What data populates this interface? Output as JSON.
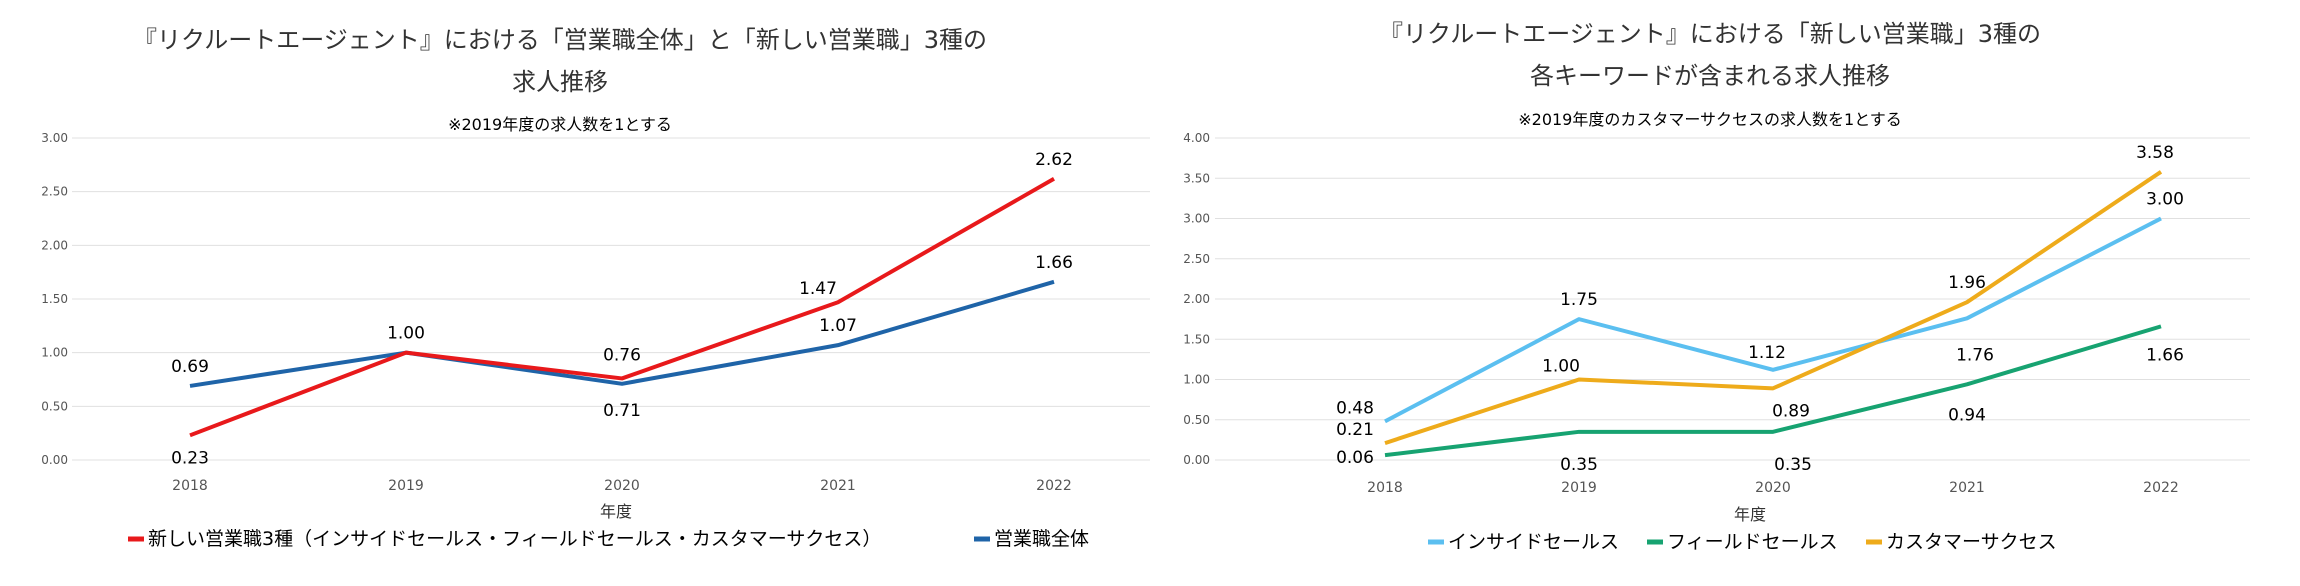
{
  "chart_data": [
    {
      "type": "line",
      "title_lines": [
        "『リクルートエージェント』における「営業職全体」と「新しい営業職」3種の",
        "求人推移"
      ],
      "subtitle": "※2019年度の求人数を1とする",
      "xlabel": "年度",
      "categories": [
        "2018",
        "2019",
        "2020",
        "2021",
        "2022"
      ],
      "ylim": [
        0,
        3
      ],
      "yticks": [
        "0.00",
        "0.50",
        "1.00",
        "1.50",
        "2.00",
        "2.50",
        "3.00"
      ],
      "grid": true,
      "legend_position": "bottom",
      "series": [
        {
          "name": "新しい営業職3種（インサイドセールス・フィールドセールス・カスタマーサクセス）",
          "color": "#e8191b",
          "values": [
            0.23,
            1.0,
            0.76,
            1.47,
            2.62
          ],
          "labels": [
            "0.23",
            "1.00",
            "0.76",
            "1.47",
            "2.62"
          ]
        },
        {
          "name": "営業職全体",
          "color": "#1f64a8",
          "values": [
            0.69,
            1.0,
            0.71,
            1.07,
            1.66
          ],
          "labels": [
            "0.69",
            "",
            "0.71",
            "1.07",
            "1.66"
          ]
        }
      ]
    },
    {
      "type": "line",
      "title_lines": [
        "『リクルートエージェント』における「新しい営業職」3種の",
        "各キーワードが含まれる求人推移"
      ],
      "subtitle": "※2019年度のカスタマーサクセスの求人数を1とする",
      "xlabel": "年度",
      "categories": [
        "2018",
        "2019",
        "2020",
        "2021",
        "2022"
      ],
      "ylim": [
        0,
        4
      ],
      "yticks": [
        "0.00",
        "0.50",
        "1.00",
        "1.50",
        "2.00",
        "2.50",
        "3.00",
        "3.50",
        "4.00"
      ],
      "grid": true,
      "legend_position": "bottom",
      "series": [
        {
          "name": "インサイドセールス",
          "color": "#5bbff0",
          "values": [
            0.48,
            1.75,
            1.12,
            1.76,
            3.0
          ],
          "labels": [
            "0.48",
            "1.75",
            "1.12",
            "1.76",
            "3.00"
          ]
        },
        {
          "name": "フィールドセールス",
          "color": "#17a371",
          "values": [
            0.06,
            0.35,
            0.35,
            0.94,
            1.66
          ],
          "labels": [
            "0.06",
            "0.35",
            "0.35",
            "0.94",
            "1.66"
          ]
        },
        {
          "name": "カスタマーサクセス",
          "color": "#eeab1b",
          "values": [
            0.21,
            1.0,
            0.89,
            1.96,
            3.58
          ],
          "labels": [
            "0.21",
            "1.00",
            "0.89",
            "1.96",
            "3.58"
          ]
        }
      ]
    }
  ]
}
